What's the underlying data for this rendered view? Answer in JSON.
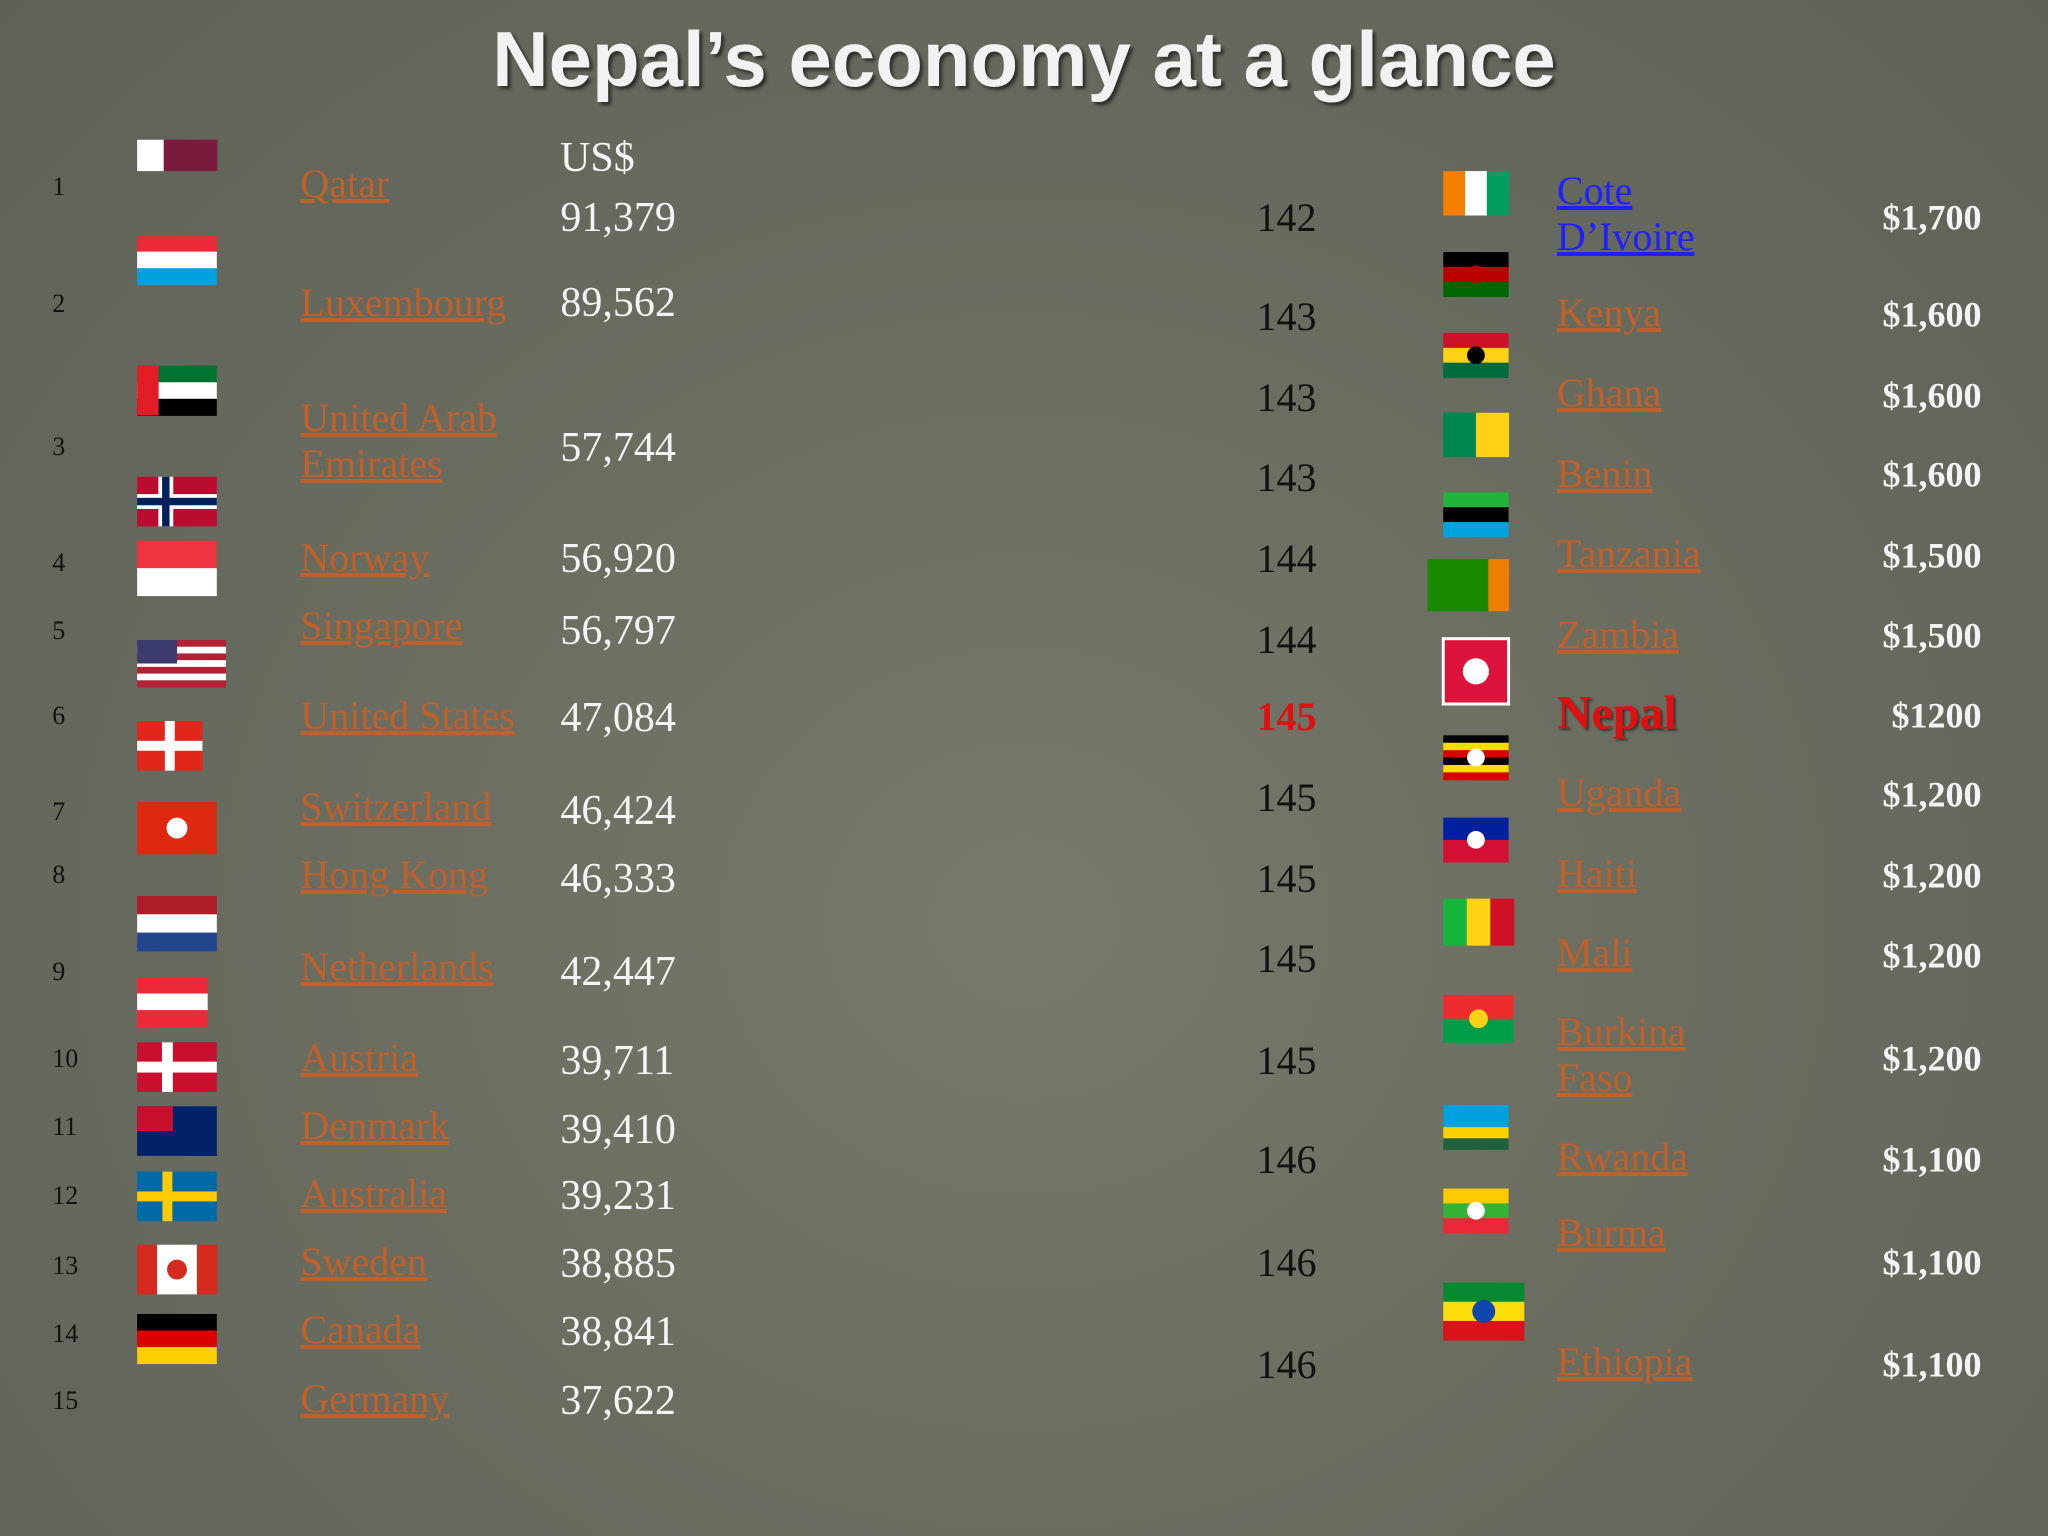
{
  "title": "Nepal’s economy at a glance",
  "left": {
    "header": "US$",
    "rows": [
      {
        "rank": "1",
        "country": "Qatar",
        "value": "91,379"
      },
      {
        "rank": "2",
        "country": "Luxembourg",
        "value": "89,562"
      },
      {
        "rank": "3",
        "country": "United Arab Emirates",
        "value": "57,744"
      },
      {
        "rank": "4",
        "country": "Norway",
        "value": "56,920"
      },
      {
        "rank": "5",
        "country": "Singapore",
        "value": "56,797"
      },
      {
        "rank": "6",
        "country": "United States",
        "value": "47,084"
      },
      {
        "rank": "7",
        "country": "Switzerland",
        "value": "46,424"
      },
      {
        "rank": "8",
        "country": "Hong Kong",
        "value": "46,333"
      },
      {
        "rank": "9",
        "country": "Netherlands",
        "value": "42,447"
      },
      {
        "rank": "10",
        "country": "Austria",
        "value": "39,711"
      },
      {
        "rank": "11",
        "country": "Denmark",
        "value": "39,410"
      },
      {
        "rank": "12",
        "country": "Australia",
        "value": "39,231"
      },
      {
        "rank": "13",
        "country": "Sweden",
        "value": "38,885"
      },
      {
        "rank": "14",
        "country": "Canada",
        "value": "38,841"
      },
      {
        "rank": "15",
        "country": "Germany",
        "value": "37,622"
      }
    ]
  },
  "right": {
    "rows": [
      {
        "rank": "142",
        "country": "Cote D’Ivoire",
        "value": "$1,700"
      },
      {
        "rank": "143",
        "country": "Kenya",
        "value": "$1,600"
      },
      {
        "rank": "143",
        "country": "Ghana",
        "value": "$1,600"
      },
      {
        "rank": "143",
        "country": "Benin",
        "value": "$1,600"
      },
      {
        "rank": "144",
        "country": "Tanzania",
        "value": "$1,500"
      },
      {
        "rank": "144",
        "country": "Zambia",
        "value": "$1,500"
      },
      {
        "rank": "145",
        "country": "Nepal",
        "value": "$1200"
      },
      {
        "rank": "145",
        "country": "Uganda",
        "value": "$1,200"
      },
      {
        "rank": "145",
        "country": "Haiti",
        "value": "$1,200"
      },
      {
        "rank": "145",
        "country": "Mali",
        "value": "$1,200"
      },
      {
        "rank": "145",
        "country": "Burkina Faso",
        "value": "$1,200"
      },
      {
        "rank": "146",
        "country": "Rwanda",
        "value": "$1,100"
      },
      {
        "rank": "146",
        "country": "Burma",
        "value": "$1,100"
      },
      {
        "rank": "146",
        "country": "Ethiopia",
        "value": "$1,100"
      }
    ]
  }
}
